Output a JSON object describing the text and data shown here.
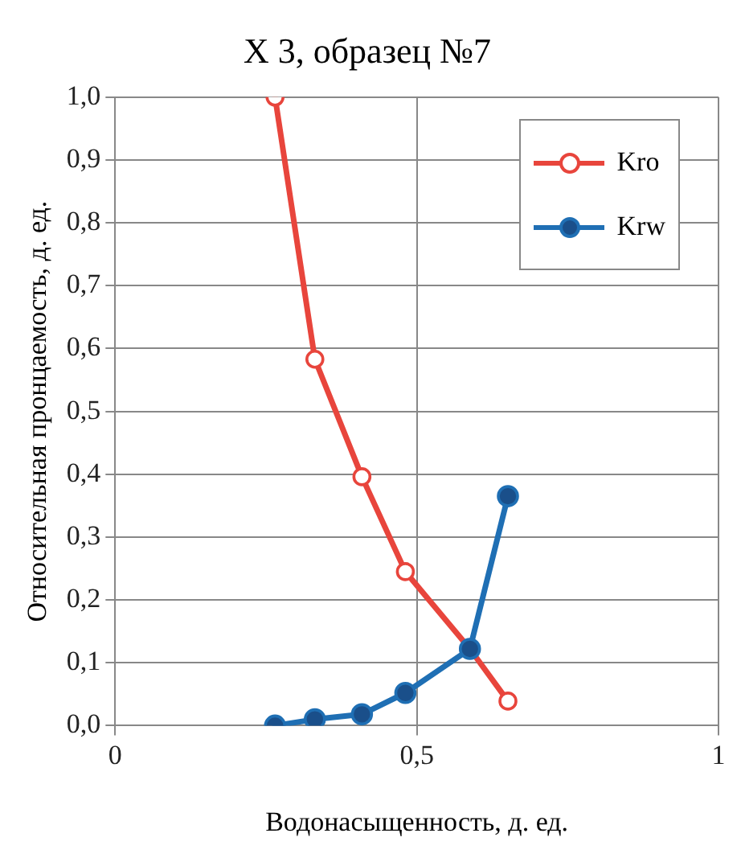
{
  "chart_data": {
    "type": "line",
    "title": "X 3, образец №7",
    "xlabel": "Водонасыщенность, д. ед.",
    "ylabel": "Относительная пронцаемость, д. ед.",
    "x": [
      0.265,
      0.331,
      0.409,
      0.481,
      0.588,
      0.651
    ],
    "series": [
      {
        "name": "Kro",
        "color": "#e8453c",
        "values": [
          1.0,
          0.583,
          0.396,
          0.245,
          0.122,
          0.039
        ]
      },
      {
        "name": "Krw",
        "color": "#1f6fb4",
        "values": [
          0.0,
          0.01,
          0.018,
          0.052,
          0.122,
          0.365
        ]
      }
    ],
    "xlim": [
      0,
      1
    ],
    "xticks": [
      0,
      {
        "value": 0.5,
        "label": "0,5"
      },
      1
    ],
    "ylim": [
      0,
      1
    ],
    "yticks": [
      {
        "value": 0,
        "label": "0,0"
      },
      {
        "value": 0.1,
        "label": "0,1"
      },
      {
        "value": 0.2,
        "label": "0,2"
      },
      {
        "value": 0.3,
        "label": "0,3"
      },
      {
        "value": 0.4,
        "label": "0,4"
      },
      {
        "value": 0.5,
        "label": "0,5"
      },
      {
        "value": 0.6,
        "label": "0,6"
      },
      {
        "value": 0.7,
        "label": "0,7"
      },
      {
        "value": 0.8,
        "label": "0,8"
      },
      {
        "value": 0.9,
        "label": "0,9"
      },
      {
        "value": 1,
        "label": "1,0"
      }
    ],
    "grid": true,
    "legend": "top right",
    "marker": "circle",
    "line_style": "solid"
  }
}
